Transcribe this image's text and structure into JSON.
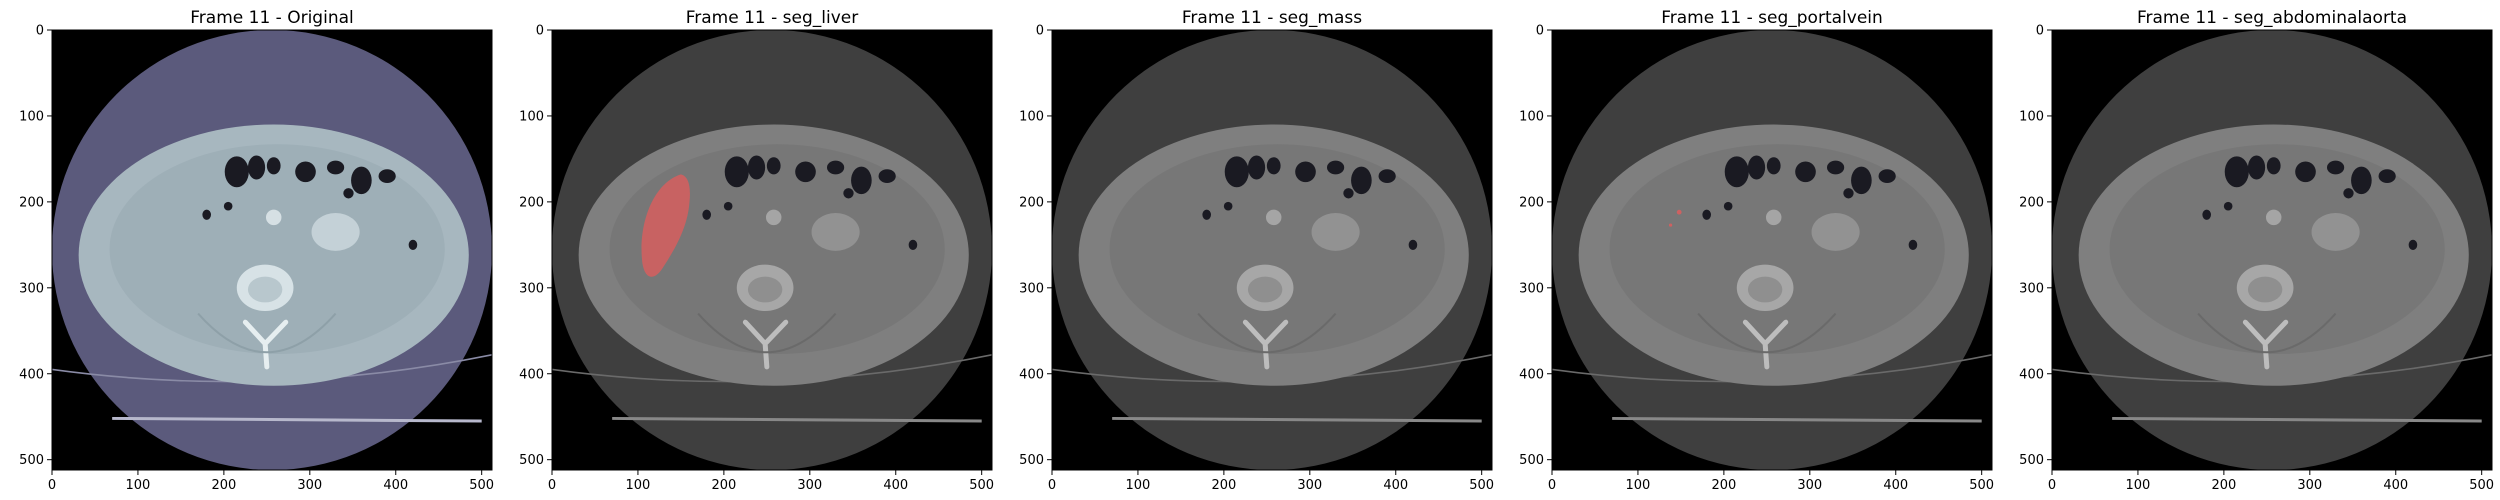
{
  "figure": {
    "panels": [
      {
        "title": "Frame 11 - Original",
        "variant": "original",
        "overlay": "none"
      },
      {
        "title": "Frame 11 - seg_liver",
        "variant": "gray",
        "overlay": "liver"
      },
      {
        "title": "Frame 11 - seg_mass",
        "variant": "gray",
        "overlay": "none"
      },
      {
        "title": "Frame 11 - seg_portalvein",
        "variant": "gray",
        "overlay": "portalvein"
      },
      {
        "title": "Frame 11 - seg_abdominalaorta",
        "variant": "gray",
        "overlay": "none"
      }
    ],
    "x_ticks": [
      "0",
      "100",
      "200",
      "300",
      "400",
      "500"
    ],
    "y_ticks": [
      "0",
      "100",
      "200",
      "300",
      "400",
      "500"
    ],
    "axis_range": {
      "x": [
        0,
        512
      ],
      "y": [
        512,
        0
      ]
    },
    "colors": {
      "overlay_red": "#e35b5b",
      "original_tissue": "#a7b7bf",
      "original_fov": "#5b5a7c",
      "gray_tissue": "#7f7f7f",
      "gray_fov": "#3f3f3f"
    }
  }
}
